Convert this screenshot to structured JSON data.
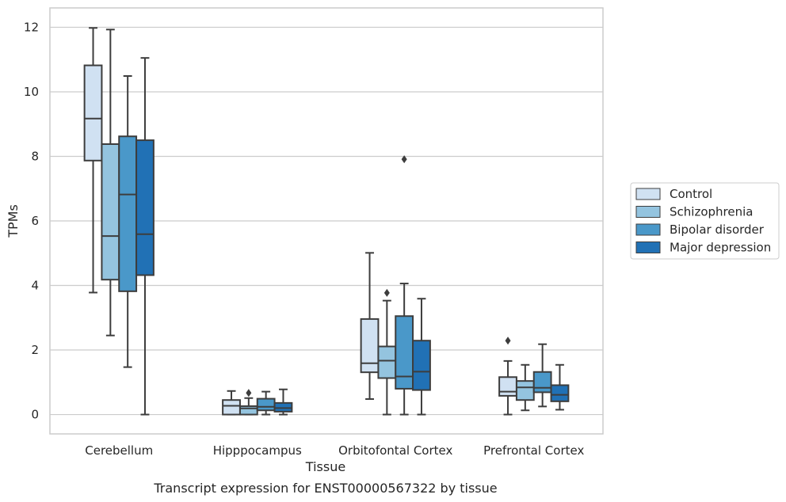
{
  "chart_data": {
    "type": "box",
    "title": "",
    "caption": "Transcript expression for ENST00000567322 by tissue",
    "xlabel": "Tissue",
    "ylabel": "TPMs",
    "ylim": [
      -0.6,
      12.6
    ],
    "yticks": [
      0,
      2,
      4,
      6,
      8,
      10,
      12
    ],
    "grid": true,
    "legend_position": "right",
    "categories": [
      "Cerebellum",
      "Hipppocampus",
      "Orbitofontal Cortex",
      "Prefrontal Cortex"
    ],
    "series": [
      {
        "name": "Control",
        "color": "#d0e1f2",
        "boxes": [
          {
            "whislo": 3.78,
            "q1": 7.87,
            "med": 9.17,
            "q3": 10.82,
            "whishi": 11.98,
            "fliers": []
          },
          {
            "whislo": 0.0,
            "q1": 0.0,
            "med": 0.27,
            "q3": 0.45,
            "whishi": 0.73,
            "fliers": []
          },
          {
            "whislo": 0.48,
            "q1": 1.31,
            "med": 1.59,
            "q3": 2.96,
            "whishi": 5.01,
            "fliers": []
          },
          {
            "whislo": 0.0,
            "q1": 0.58,
            "med": 0.71,
            "q3": 1.16,
            "whishi": 1.66,
            "fliers": [
              2.29
            ]
          }
        ]
      },
      {
        "name": "Schizophrenia",
        "color": "#94c4df",
        "boxes": [
          {
            "whislo": 2.45,
            "q1": 4.18,
            "med": 5.53,
            "q3": 8.38,
            "whishi": 11.93,
            "fliers": []
          },
          {
            "whislo": 0.0,
            "q1": 0.0,
            "med": 0.19,
            "q3": 0.26,
            "whishi": 0.51,
            "fliers": [
              0.67
            ]
          },
          {
            "whislo": 0.0,
            "q1": 1.13,
            "med": 1.67,
            "q3": 2.11,
            "whishi": 3.53,
            "fliers": [
              3.77
            ]
          },
          {
            "whislo": 0.13,
            "q1": 0.45,
            "med": 0.84,
            "q3": 1.04,
            "whishi": 1.54,
            "fliers": []
          }
        ]
      },
      {
        "name": "Bipolar disorder",
        "color": "#4a98c9",
        "boxes": [
          {
            "whislo": 1.47,
            "q1": 3.82,
            "med": 6.82,
            "q3": 8.62,
            "whishi": 10.49,
            "fliers": []
          },
          {
            "whislo": 0.0,
            "q1": 0.13,
            "med": 0.24,
            "q3": 0.49,
            "whishi": 0.71,
            "fliers": []
          },
          {
            "whislo": 0.0,
            "q1": 0.8,
            "med": 1.18,
            "q3": 3.05,
            "whishi": 4.06,
            "fliers": [
              7.91
            ]
          },
          {
            "whislo": 0.25,
            "q1": 0.69,
            "med": 0.83,
            "q3": 1.32,
            "whishi": 2.18,
            "fliers": []
          }
        ]
      },
      {
        "name": "Major depression",
        "color": "#2171b5",
        "boxes": [
          {
            "whislo": 0.0,
            "q1": 4.32,
            "med": 5.59,
            "q3": 8.5,
            "whishi": 11.05,
            "fliers": []
          },
          {
            "whislo": 0.0,
            "q1": 0.09,
            "med": 0.2,
            "q3": 0.36,
            "whishi": 0.78,
            "fliers": []
          },
          {
            "whislo": 0.0,
            "q1": 0.76,
            "med": 1.33,
            "q3": 2.29,
            "whishi": 3.59,
            "fliers": []
          },
          {
            "whislo": 0.15,
            "q1": 0.41,
            "med": 0.61,
            "q3": 0.91,
            "whishi": 1.54,
            "fliers": []
          }
        ]
      }
    ]
  }
}
